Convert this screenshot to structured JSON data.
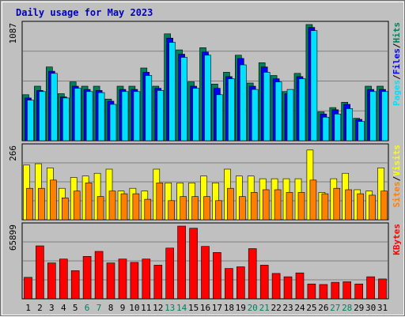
{
  "chart_data": {
    "type": "bar",
    "title": "Daily usage for May 2023",
    "days": [
      "1",
      "2",
      "3",
      "4",
      "5",
      "6",
      "7",
      "8",
      "9",
      "10",
      "11",
      "12",
      "13",
      "14",
      "15",
      "16",
      "17",
      "18",
      "19",
      "20",
      "21",
      "22",
      "23",
      "24",
      "25",
      "26",
      "27",
      "28",
      "29",
      "30",
      "31"
    ],
    "weekend_days": [
      "6",
      "7",
      "13",
      "14",
      "20",
      "21",
      "27",
      "28"
    ],
    "colors": {
      "title": "#0000c0",
      "hits": "#00805b",
      "files": "#0000ff",
      "pages": "#00e0ff",
      "visits": "#ff8000",
      "sites": "#ffff00",
      "kbytes": "#ff0000",
      "weekend_label": "#00805b",
      "weekday_label": "#000000"
    },
    "panels": [
      {
        "key": "top",
        "ymax_label": "1087",
        "ymax": 1087,
        "legend": [
          {
            "text": "Hits",
            "color": "#00805b"
          },
          {
            "text": "/",
            "color": "#000000"
          },
          {
            "text": "Files",
            "color": "#0000ff"
          },
          {
            "text": "/",
            "color": "#000000"
          },
          {
            "text": "Pages",
            "color": "#00e0ff"
          }
        ],
        "series": [
          {
            "name": "Hits",
            "color": "#00805b",
            "values": [
              430,
              510,
              690,
              440,
              550,
              510,
              510,
              390,
              510,
              510,
              680,
              510,
              1000,
              850,
              550,
              870,
              530,
              640,
              800,
              540,
              730,
              610,
              460,
              630,
              1087,
              270,
              310,
              360,
              210,
              510,
              510
            ]
          },
          {
            "name": "Files",
            "color": "#0000ff",
            "values": [
              400,
              470,
              650,
              410,
              510,
              480,
              470,
              370,
              480,
              480,
              640,
              490,
              960,
              810,
              510,
              830,
              490,
              600,
              770,
              510,
              690,
              580,
              440,
              600,
              1060,
              250,
              290,
              340,
              200,
              480,
              480
            ]
          },
          {
            "name": "Pages",
            "color": "#00e0ff",
            "values": [
              380,
              460,
              630,
              400,
              490,
              460,
              450,
              340,
              460,
              460,
              610,
              470,
              920,
              780,
              490,
              800,
              430,
              580,
              710,
              480,
              640,
              550,
              480,
              580,
              1030,
              220,
              250,
              300,
              180,
              460,
              460
            ]
          }
        ]
      },
      {
        "key": "middle",
        "ymax_label": "266",
        "ymax": 266,
        "legend": [
          {
            "text": "Visits",
            "color": "#ffff00"
          },
          {
            "text": "/",
            "color": "#000000"
          },
          {
            "text": "Sites",
            "color": "#ff8000"
          }
        ],
        "series": [
          {
            "name": "Visits",
            "color": "#ffff00",
            "values": [
              200,
              205,
              190,
              115,
              155,
              160,
              170,
              185,
              105,
              115,
              105,
              185,
              135,
              135,
              135,
              160,
              135,
              185,
              160,
              160,
              150,
              150,
              150,
              150,
              255,
              100,
              150,
              170,
              110,
              105,
              190
            ]
          },
          {
            "name": "Sites",
            "color": "#ff8000",
            "values": [
              115,
              115,
              145,
              80,
              105,
              135,
              85,
              105,
              95,
              95,
              75,
              135,
              70,
              85,
              85,
              85,
              70,
              115,
              85,
              100,
              110,
              110,
              100,
              100,
              145,
              95,
              115,
              110,
              95,
              90,
              105
            ]
          }
        ]
      },
      {
        "key": "bottom",
        "ymax_label": "65899",
        "ymax": 65899,
        "legend": [
          {
            "text": "KBytes",
            "color": "#ff0000"
          }
        ],
        "series": [
          {
            "name": "KBytes",
            "color": "#ff0000",
            "values": [
              19500,
              48000,
              32500,
              36000,
              25500,
              38500,
              43000,
              32500,
              36000,
              33000,
              36000,
              30500,
              46000,
              65899,
              64000,
              47500,
              42000,
              27500,
              29000,
              45500,
              30500,
              23000,
              20000,
              23500,
              13500,
              13000,
              15000,
              15500,
              13500,
              20000,
              18000
            ]
          }
        ]
      }
    ]
  }
}
